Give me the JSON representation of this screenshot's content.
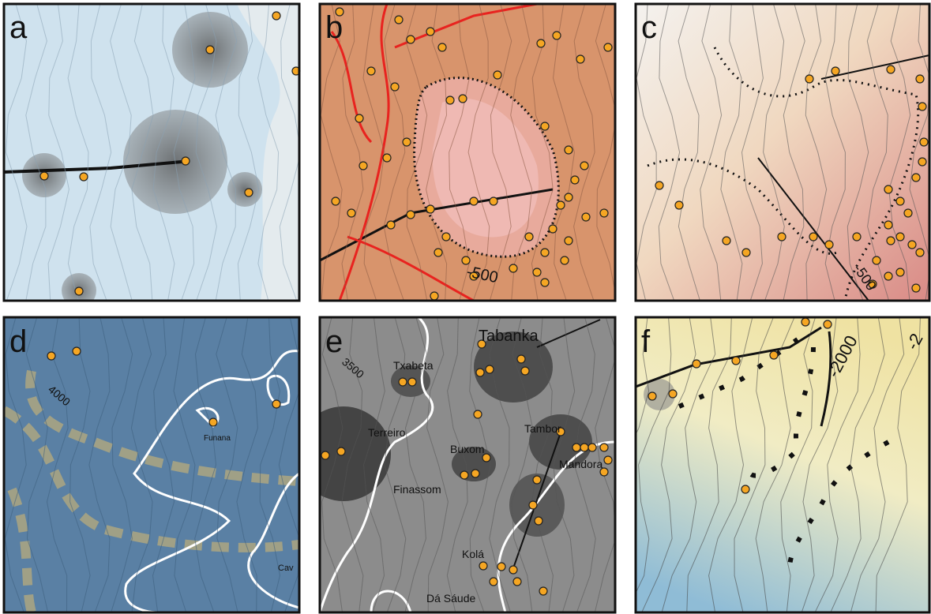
{
  "panels": [
    {
      "letter": "a"
    },
    {
      "letter": "b",
      "labels": [
        "-500"
      ]
    },
    {
      "letter": "c",
      "labels": [
        "-500"
      ]
    },
    {
      "letter": "d",
      "labels": [
        "4000",
        "Funana",
        "Cav"
      ]
    },
    {
      "letter": "e",
      "labels": [
        "3500",
        "Tabanka",
        "Txabeta",
        "Terreiro",
        "Buxom",
        "Tambor",
        "Finassom",
        "Mandora",
        "Kolá",
        "Dá Sáude"
      ]
    },
    {
      "letter": "f",
      "labels": [
        "-2000",
        "-2"
      ]
    }
  ]
}
